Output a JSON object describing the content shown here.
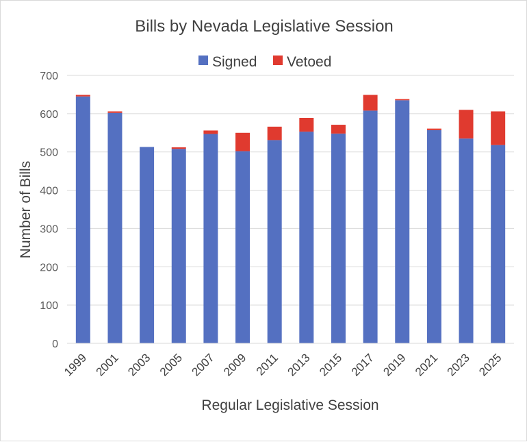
{
  "chart_data": {
    "type": "bar",
    "stacked": true,
    "title": "Bills by Nevada Legislative Session",
    "xlabel": "Regular Legislative Session",
    "ylabel": "Number of Bills",
    "ylim": [
      0,
      700
    ],
    "yticks": [
      "0",
      "100",
      "200",
      "300",
      "400",
      "500",
      "600",
      "700"
    ],
    "grid": true,
    "legend_position": "top",
    "categories": [
      "1999",
      "2001",
      "2003",
      "2005",
      "2007",
      "2009",
      "2011",
      "2013",
      "2015",
      "2017",
      "2019",
      "2021",
      "2023",
      "2025"
    ],
    "series": [
      {
        "name": "Signed",
        "color": "#5470c1",
        "values": [
          645,
          602,
          513,
          508,
          547,
          502,
          531,
          553,
          548,
          608,
          635,
          557,
          535,
          518
        ]
      },
      {
        "name": "Vetoed",
        "color": "#e03a2f",
        "values": [
          4,
          4,
          0,
          4,
          9,
          48,
          35,
          36,
          23,
          41,
          3,
          4,
          75,
          88
        ]
      }
    ]
  }
}
